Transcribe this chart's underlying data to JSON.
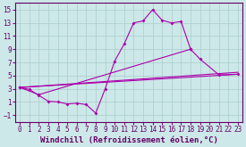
{
  "background_color": "#cce8e8",
  "line_color": "#aa00aa",
  "grid_color": "#aacccc",
  "xlabel": "Windchill (Refroidissement éolien,°C)",
  "xlabel_fontsize": 6.5,
  "tick_fontsize": 5.5,
  "xlim": [
    -0.5,
    23.5
  ],
  "ylim": [
    -2.0,
    16.0
  ],
  "yticks": [
    -1,
    1,
    3,
    5,
    7,
    9,
    11,
    13,
    15
  ],
  "xticks": [
    0,
    1,
    2,
    3,
    4,
    5,
    6,
    7,
    8,
    9,
    10,
    11,
    12,
    13,
    14,
    15,
    16,
    17,
    18,
    19,
    20,
    21,
    22,
    23
  ],
  "line1_x": [
    0,
    1,
    2,
    3,
    4,
    5,
    6,
    7,
    8,
    9,
    10,
    11,
    12,
    13,
    14,
    15,
    16,
    17,
    18
  ],
  "line1_y": [
    3.2,
    2.9,
    2.0,
    1.1,
    1.0,
    0.7,
    0.8,
    0.6,
    -0.7,
    3.0,
    7.2,
    9.8,
    13.0,
    13.3,
    15.0,
    13.4,
    13.0,
    13.2,
    9.0
  ],
  "line2_x": [
    0,
    2,
    18,
    19,
    21,
    23
  ],
  "line2_y": [
    3.2,
    2.1,
    9.0,
    7.5,
    5.1,
    5.2
  ],
  "line3_x": [
    0,
    23
  ],
  "line3_y": [
    3.2,
    5.2
  ],
  "line4_x": [
    0,
    23
  ],
  "line4_y": [
    3.2,
    5.2
  ]
}
